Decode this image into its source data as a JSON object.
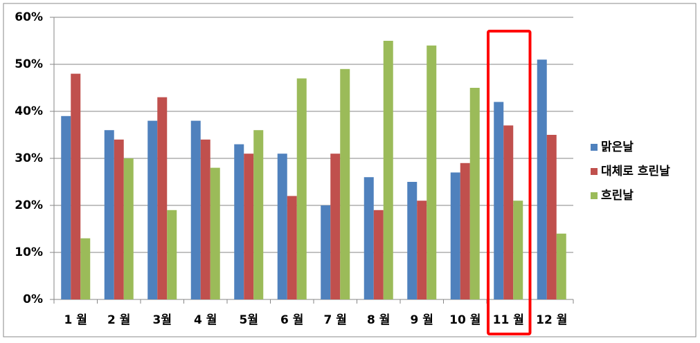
{
  "chart_data": {
    "type": "bar",
    "categories": [
      "1 월",
      "2 월",
      "3월",
      "4 월",
      "5월",
      "6 월",
      "7 월",
      "8 월",
      "9 월",
      "10 월",
      "11 월",
      "12 월"
    ],
    "series": [
      {
        "name": "맑은날",
        "color": "#4f81bd",
        "values": [
          39,
          36,
          38,
          38,
          33,
          31,
          20,
          26,
          25,
          27,
          42,
          51
        ]
      },
      {
        "name": "대체로 흐린날",
        "color": "#c0504d",
        "values": [
          48,
          34,
          43,
          34,
          31,
          22,
          31,
          19,
          21,
          29,
          37,
          35
        ]
      },
      {
        "name": "흐린날",
        "color": "#9bbb59",
        "values": [
          13,
          30,
          19,
          28,
          36,
          47,
          49,
          55,
          54,
          45,
          21,
          14
        ]
      }
    ],
    "ylim": [
      0,
      60
    ],
    "yticks": [
      {
        "value": 0,
        "label": "0%"
      },
      {
        "value": 10,
        "label": "10%"
      },
      {
        "value": 20,
        "label": "20%"
      },
      {
        "value": 30,
        "label": "30%"
      },
      {
        "value": 40,
        "label": "40%"
      },
      {
        "value": 50,
        "label": "50%"
      },
      {
        "value": 60,
        "label": "60%"
      }
    ],
    "grid": true,
    "legend": "right"
  }
}
